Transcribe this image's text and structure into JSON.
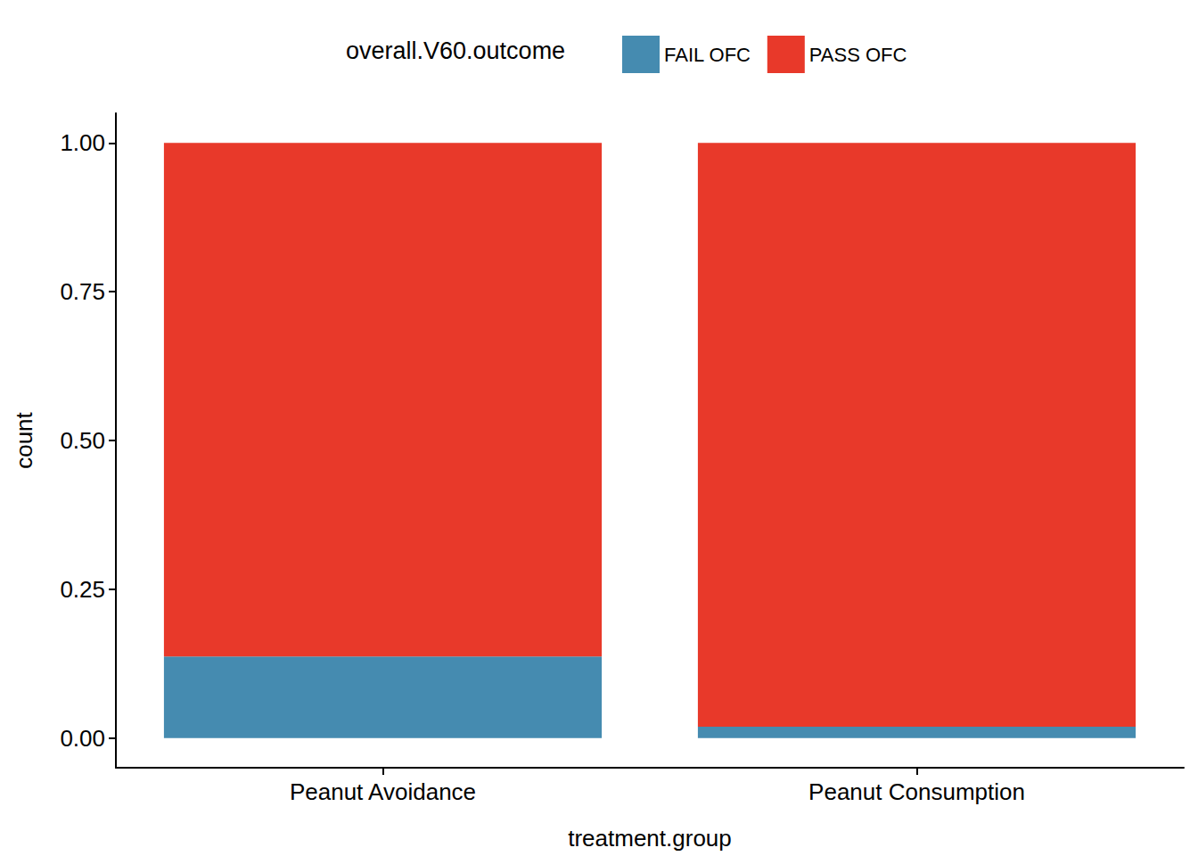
{
  "chart_data": {
    "type": "bar",
    "stacked": true,
    "grid": false,
    "legend_title": "overall.V60.outcome",
    "legend": "top",
    "x_label": "treatment.group",
    "y_label": "count",
    "categories": [
      "Peanut Avoidance",
      "Peanut Consumption"
    ],
    "series": [
      {
        "name": "FAIL OFC",
        "color": "#458BB0",
        "values": [
          0.137,
          0.019
        ]
      },
      {
        "name": "PASS OFC",
        "color": "#E8392A",
        "values": [
          0.863,
          0.981
        ]
      }
    ],
    "ylim": [
      -0.05,
      1.05
    ],
    "yticks": [
      {
        "value": 0,
        "label": "0.00"
      },
      {
        "value": 0.25,
        "label": "0.25"
      },
      {
        "value": 0.5,
        "label": "0.50"
      },
      {
        "value": 0.75,
        "label": "0.75"
      },
      {
        "value": 1,
        "label": "1.00"
      }
    ]
  }
}
